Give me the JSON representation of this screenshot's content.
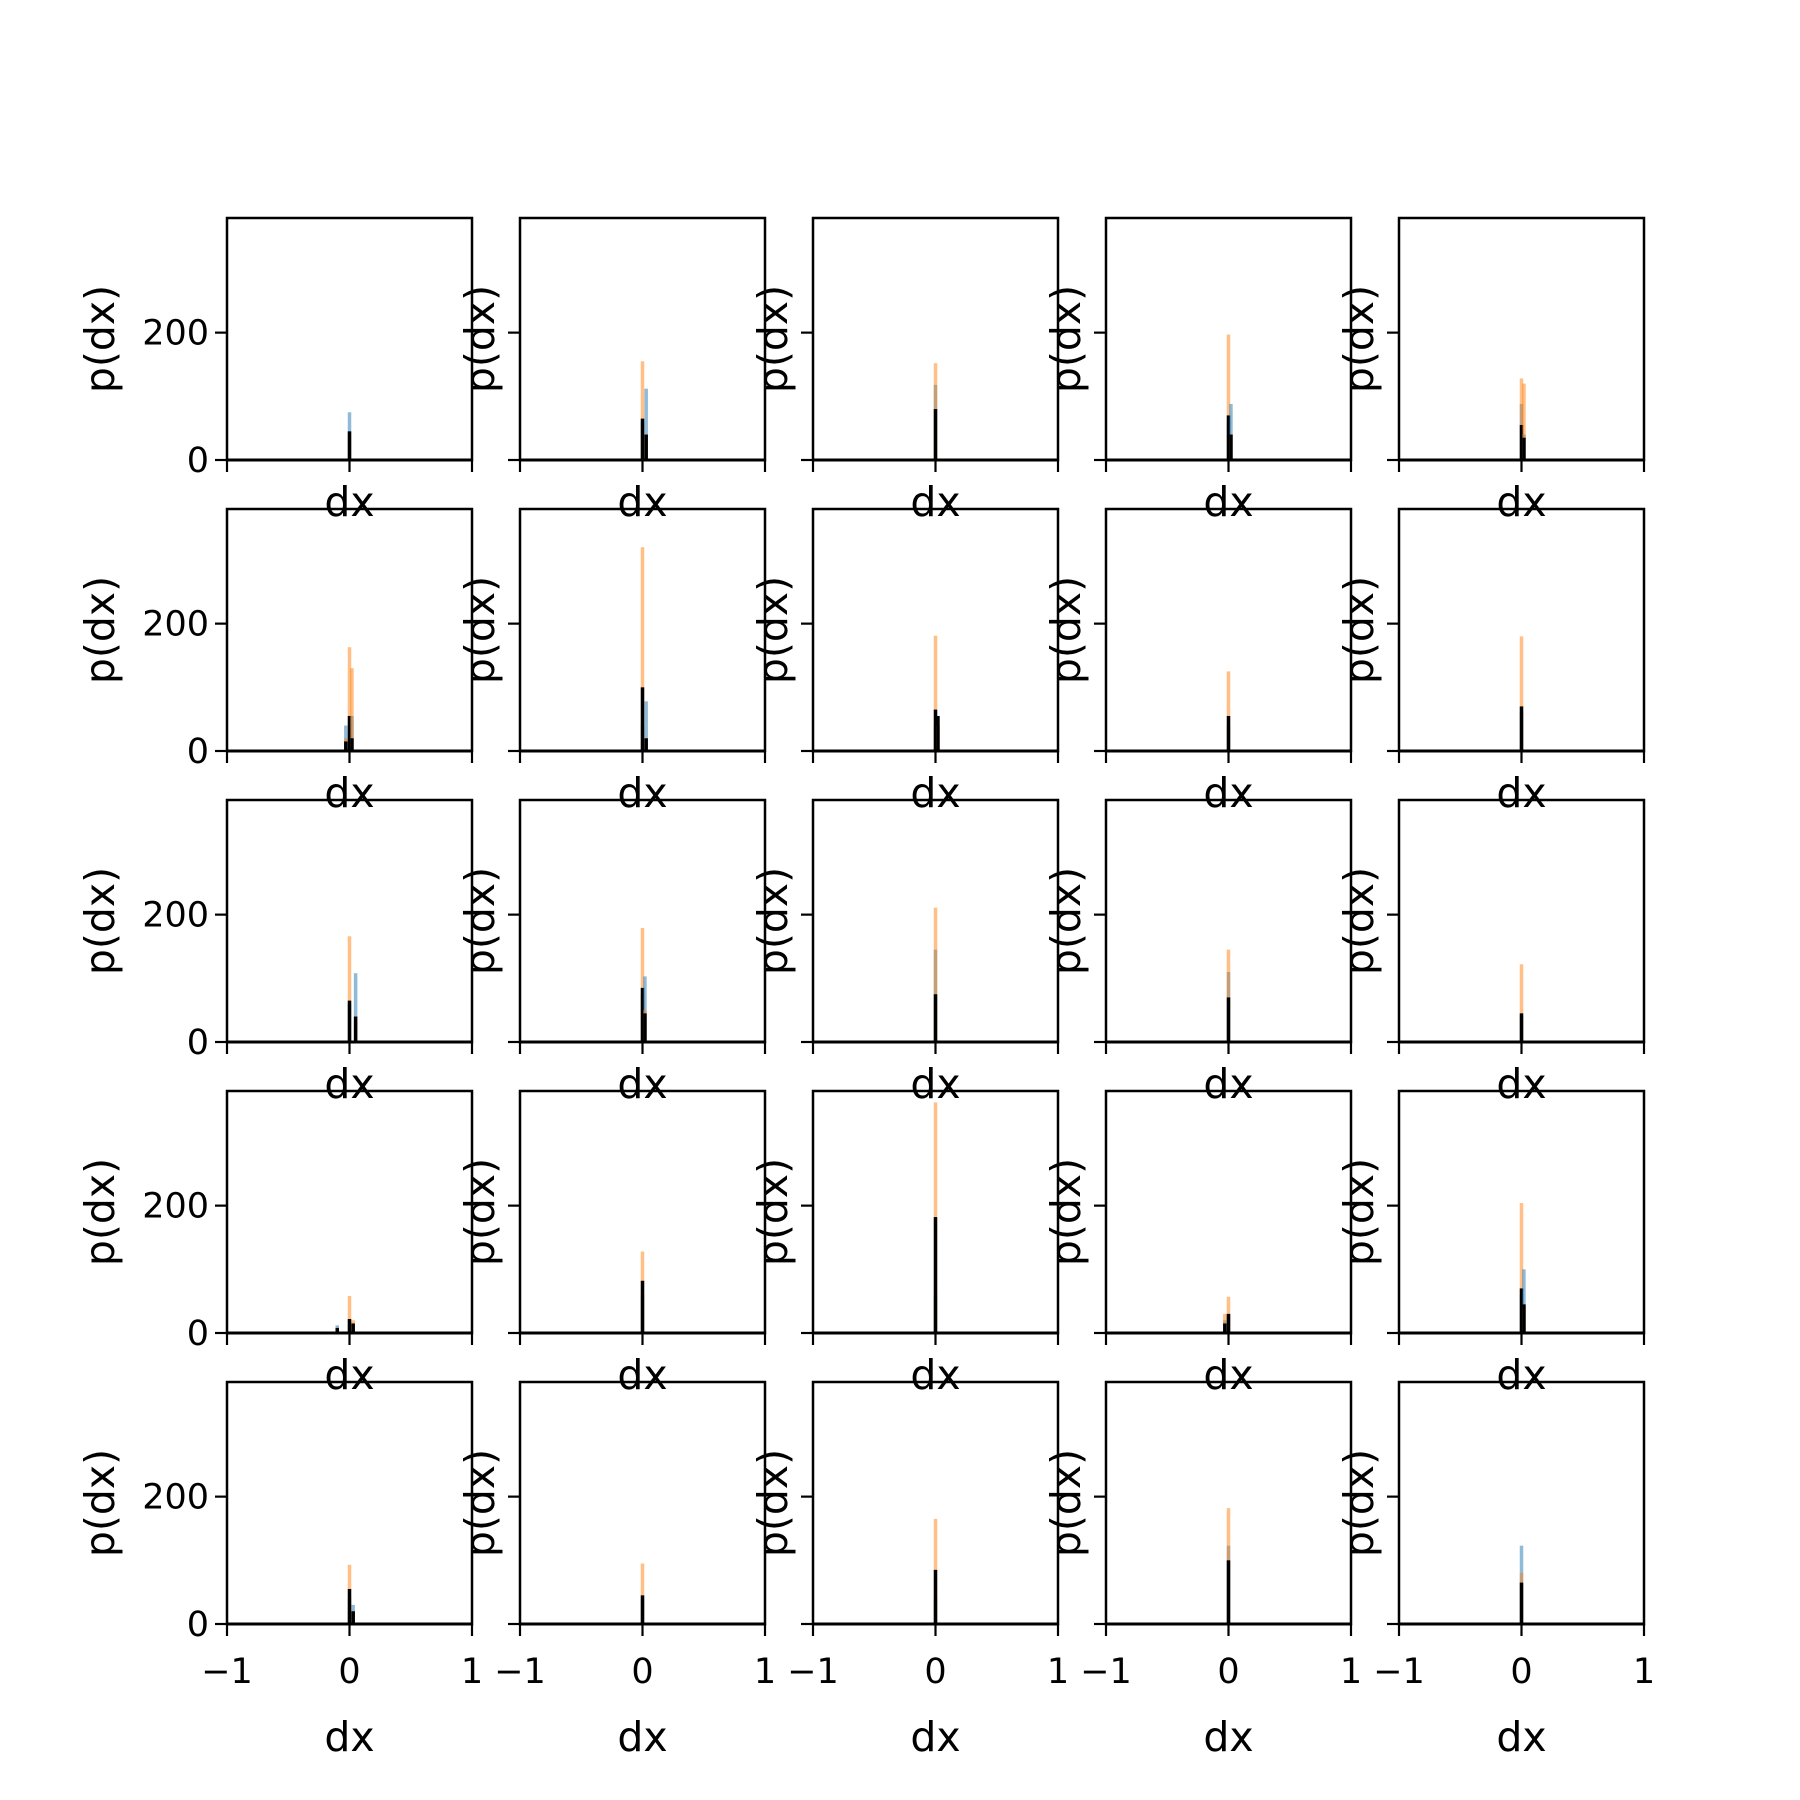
{
  "chart_data": {
    "type": "bar",
    "layout": {
      "rows": 5,
      "cols": 5
    },
    "xlabel": "dx",
    "ylabel": "p(dx)",
    "xlim": [
      -1,
      1
    ],
    "ylim": [
      0,
      380
    ],
    "xticks": [
      -1,
      0,
      1
    ],
    "xtick_labels": [
      "−1",
      "0",
      "1"
    ],
    "yticks": [
      0,
      200
    ],
    "ytick_labels": [
      "0",
      "200"
    ],
    "colors": {
      "blue": "#1f77b4",
      "orange": "#ff7f0e",
      "black": "#000000"
    },
    "series_alpha": 0.5,
    "panels": [
      {
        "peaks": [
          {
            "x": 0.0,
            "blue": 75,
            "orange": 40,
            "black": 45
          }
        ]
      },
      {
        "peaks": [
          {
            "x": 0.0,
            "blue": 60,
            "orange": 155,
            "black": 65
          },
          {
            "x": 0.03,
            "blue": 112,
            "orange": 40,
            "black": 40
          }
        ]
      },
      {
        "peaks": [
          {
            "x": 0.0,
            "blue": 118,
            "orange": 152,
            "black": 80
          }
        ]
      },
      {
        "peaks": [
          {
            "x": 0.0,
            "blue": 60,
            "orange": 197,
            "black": 70
          },
          {
            "x": 0.02,
            "blue": 88,
            "orange": 40,
            "black": 40
          }
        ]
      },
      {
        "peaks": [
          {
            "x": 0.0,
            "blue": 88,
            "orange": 128,
            "black": 55
          },
          {
            "x": 0.02,
            "blue": 40,
            "orange": 120,
            "black": 35
          }
        ]
      },
      {
        "peaks": [
          {
            "x": -0.03,
            "blue": 40,
            "orange": 20,
            "black": 15
          },
          {
            "x": 0.0,
            "blue": 30,
            "orange": 163,
            "black": 55
          },
          {
            "x": 0.02,
            "blue": 55,
            "orange": 130,
            "black": 20
          }
        ]
      },
      {
        "peaks": [
          {
            "x": 0.0,
            "blue": 40,
            "orange": 320,
            "black": 100
          },
          {
            "x": 0.03,
            "blue": 78,
            "orange": 20,
            "black": 20
          }
        ]
      },
      {
        "peaks": [
          {
            "x": 0.0,
            "blue": 40,
            "orange": 181,
            "black": 65
          },
          {
            "x": 0.02,
            "blue": 40,
            "orange": 40,
            "black": 55
          }
        ]
      },
      {
        "peaks": [
          {
            "x": 0.0,
            "blue": 40,
            "orange": 125,
            "black": 55
          }
        ]
      },
      {
        "peaks": [
          {
            "x": 0.0,
            "blue": 60,
            "orange": 180,
            "black": 70
          }
        ]
      },
      {
        "peaks": [
          {
            "x": 0.0,
            "blue": 60,
            "orange": 166,
            "black": 65
          },
          {
            "x": 0.05,
            "blue": 108,
            "orange": 30,
            "black": 40
          }
        ]
      },
      {
        "peaks": [
          {
            "x": 0.0,
            "blue": 75,
            "orange": 179,
            "black": 85
          },
          {
            "x": 0.02,
            "blue": 103,
            "orange": 50,
            "black": 45
          }
        ]
      },
      {
        "peaks": [
          {
            "x": 0.0,
            "blue": 145,
            "orange": 211,
            "black": 75
          }
        ]
      },
      {
        "peaks": [
          {
            "x": 0.0,
            "blue": 110,
            "orange": 145,
            "black": 70
          }
        ]
      },
      {
        "peaks": [
          {
            "x": 0.0,
            "blue": 40,
            "orange": 122,
            "black": 45
          }
        ]
      },
      {
        "peaks": [
          {
            "x": -0.1,
            "blue": 12,
            "orange": 5,
            "black": 8
          },
          {
            "x": 0.0,
            "blue": 20,
            "orange": 58,
            "black": 22
          },
          {
            "x": 0.03,
            "blue": 10,
            "orange": 20,
            "black": 15
          }
        ]
      },
      {
        "peaks": [
          {
            "x": 0.0,
            "blue": 60,
            "orange": 128,
            "black": 82
          }
        ]
      },
      {
        "peaks": [
          {
            "x": 0.0,
            "blue": 60,
            "orange": 362,
            "black": 182
          }
        ]
      },
      {
        "peaks": [
          {
            "x": -0.03,
            "blue": 20,
            "orange": 30,
            "black": 15
          },
          {
            "x": 0.0,
            "blue": 30,
            "orange": 57,
            "black": 30
          }
        ]
      },
      {
        "peaks": [
          {
            "x": 0.0,
            "blue": 60,
            "orange": 204,
            "black": 70
          },
          {
            "x": 0.02,
            "blue": 100,
            "orange": 40,
            "black": 45
          }
        ]
      },
      {
        "peaks": [
          {
            "x": 0.0,
            "blue": 40,
            "orange": 93,
            "black": 55
          },
          {
            "x": 0.03,
            "blue": 30,
            "orange": 20,
            "black": 20
          }
        ]
      },
      {
        "peaks": [
          {
            "x": 0.0,
            "blue": 40,
            "orange": 95,
            "black": 45
          }
        ]
      },
      {
        "peaks": [
          {
            "x": 0.0,
            "blue": 40,
            "orange": 165,
            "black": 85
          }
        ]
      },
      {
        "peaks": [
          {
            "x": 0.0,
            "blue": 123,
            "orange": 182,
            "black": 100
          }
        ]
      },
      {
        "peaks": [
          {
            "x": 0.0,
            "blue": 123,
            "orange": 80,
            "black": 65
          }
        ]
      }
    ]
  }
}
